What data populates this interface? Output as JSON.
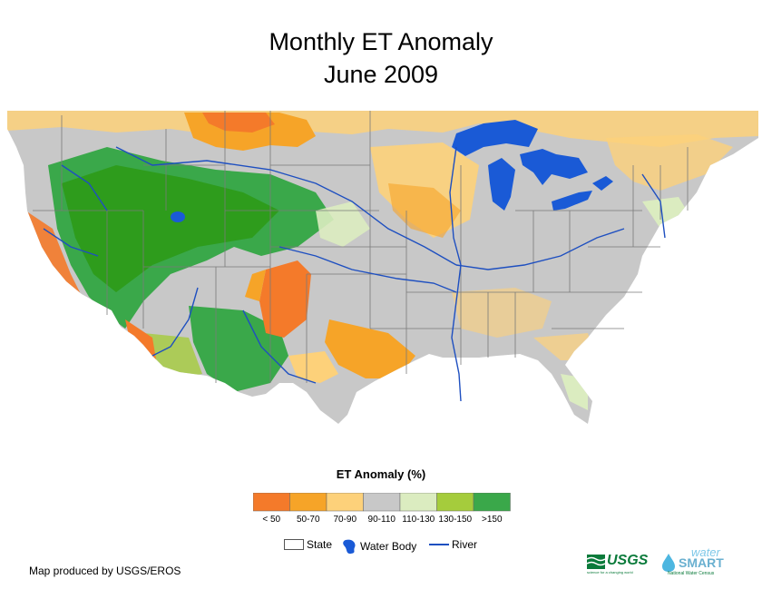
{
  "title": {
    "line1": "Monthly ET Anomaly",
    "line2": "June 2009"
  },
  "legend": {
    "title": "ET Anomaly (%)",
    "classes": [
      {
        "label": "< 50",
        "color": "#f47a2a"
      },
      {
        "label": "50-70",
        "color": "#f6a428"
      },
      {
        "label": "70-90",
        "color": "#fdd17a"
      },
      {
        "label": "90-110",
        "color": "#c8c8c8"
      },
      {
        "label": "110-130",
        "color": "#dbecc0"
      },
      {
        "label": "130-150",
        "color": "#a5cc3c"
      },
      {
        "label": ">150",
        "color": "#3aa84a"
      }
    ]
  },
  "map_key": {
    "state": "State",
    "water_body": "Water Body",
    "river": "River"
  },
  "colors": {
    "water": "#1a5ad6",
    "river": "#1e4fc0",
    "state_line": "#7a7a7a",
    "land_base": "#c8c8c8"
  },
  "credit": "Map produced by USGS/EROS",
  "logos": {
    "usgs": "USGS",
    "usgs_tagline": "science for a changing world",
    "water": "water",
    "smart": "SMART",
    "smart_tagline": "National Water Census"
  }
}
